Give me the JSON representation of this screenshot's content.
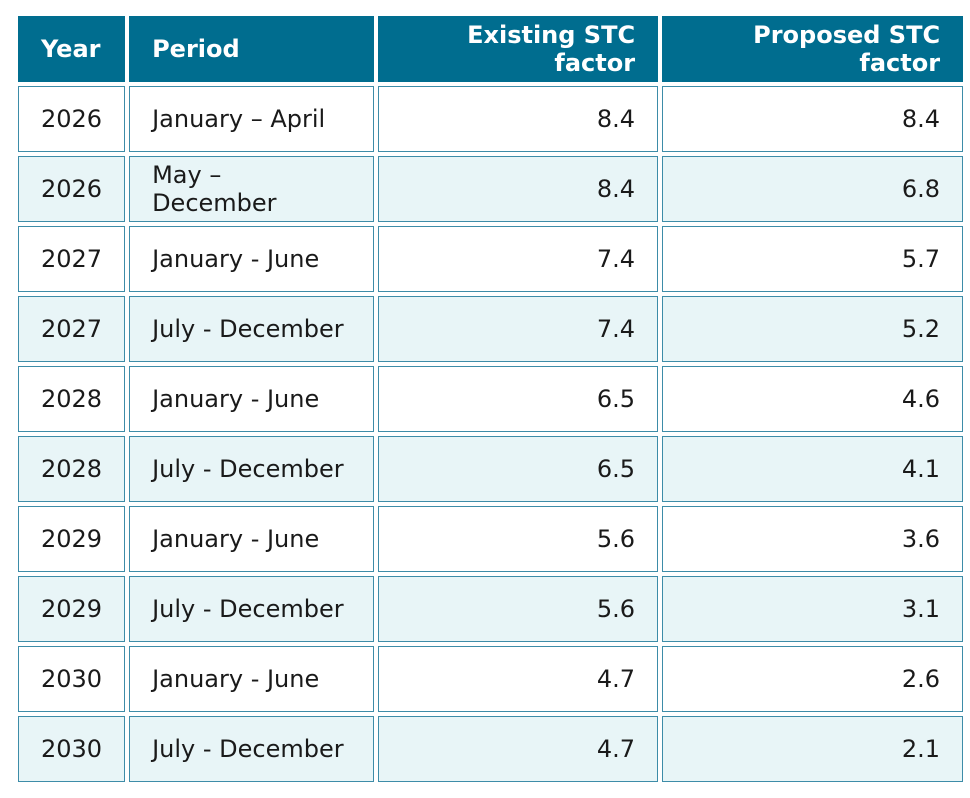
{
  "table": {
    "headers": {
      "year": "Year",
      "period": "Period",
      "existing": "Existing STC factor",
      "proposed": "Proposed STC factor"
    },
    "rows": [
      {
        "year": "2026",
        "period": "January – April",
        "existing": "8.4",
        "proposed": "8.4"
      },
      {
        "year": "2026",
        "period": "May – December",
        "existing": "8.4",
        "proposed": "6.8"
      },
      {
        "year": "2027",
        "period": "January - June",
        "existing": "7.4",
        "proposed": "5.7"
      },
      {
        "year": "2027",
        "period": "July - December",
        "existing": "7.4",
        "proposed": "5.2"
      },
      {
        "year": "2028",
        "period": "January - June",
        "existing": "6.5",
        "proposed": "4.6"
      },
      {
        "year": "2028",
        "period": "July - December",
        "existing": "6.5",
        "proposed": "4.1"
      },
      {
        "year": "2029",
        "period": "January - June",
        "existing": "5.6",
        "proposed": "3.6"
      },
      {
        "year": "2029",
        "period": "July - December",
        "existing": "5.6",
        "proposed": "3.1"
      },
      {
        "year": "2030",
        "period": "January - June",
        "existing": "4.7",
        "proposed": "2.6"
      },
      {
        "year": "2030",
        "period": "July - December",
        "existing": "4.7",
        "proposed": "2.1"
      }
    ]
  },
  "colors": {
    "header_bg": "#006d8f",
    "header_text": "#ffffff",
    "row_alt_bg": "#e8f5f7",
    "border": "#3d8ca8"
  }
}
